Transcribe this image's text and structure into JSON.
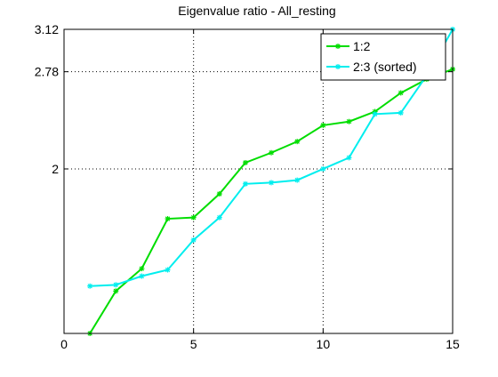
{
  "chart_data": {
    "type": "line",
    "title": "Eigenvalue ratio - All_resting",
    "xlabel": "",
    "ylabel": "",
    "xlim": [
      0,
      15
    ],
    "ylim": [
      0.68,
      3.12
    ],
    "xticks": [
      0,
      5,
      10,
      15
    ],
    "xtick_labels": [
      "0",
      "5",
      "10",
      "15"
    ],
    "yticks": [
      2,
      2.78,
      3.12
    ],
    "ytick_labels": [
      "2",
      "2.78",
      "3.12"
    ],
    "grid": true,
    "legend_position": "top-right",
    "series": [
      {
        "name": "1:2",
        "color": "#00dd00",
        "marker": "asterisk",
        "x": [
          1,
          2,
          3,
          4,
          5,
          6,
          7,
          8,
          9,
          10,
          11,
          12,
          13,
          14,
          15
        ],
        "y": [
          0.68,
          1.02,
          1.2,
          1.6,
          1.61,
          1.8,
          2.05,
          2.13,
          2.22,
          2.35,
          2.38,
          2.46,
          2.61,
          2.72,
          2.8
        ]
      },
      {
        "name": "2:3 (sorted)",
        "color": "#00eeee",
        "marker": "asterisk",
        "x": [
          1,
          2,
          3,
          4,
          5,
          6,
          7,
          8,
          9,
          10,
          11,
          12,
          13,
          14,
          15
        ],
        "y": [
          1.06,
          1.07,
          1.14,
          1.19,
          1.43,
          1.61,
          1.88,
          1.89,
          1.91,
          2.0,
          2.09,
          2.44,
          2.45,
          2.75,
          3.12
        ]
      }
    ]
  }
}
